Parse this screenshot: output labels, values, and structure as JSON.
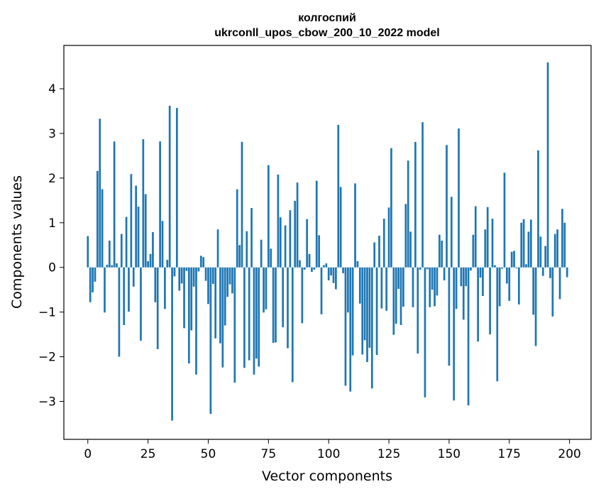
{
  "chart_data": {
    "type": "bar",
    "title": [
      "колгоспий",
      "ukrconll_upos_cbow_200_10_2022 model"
    ],
    "xlabel": "Vector components",
    "ylabel": "Components values",
    "xlim": [
      -9.95,
      208.95
    ],
    "ylim": [
      -3.85,
      4.97
    ],
    "xticks": [
      0,
      25,
      50,
      75,
      100,
      125,
      150,
      175,
      200
    ],
    "yticks": [
      -3,
      -2,
      -1,
      0,
      1,
      2,
      3,
      4
    ],
    "ytick_labels": [
      "−3",
      "−2",
      "−1",
      "0",
      "1",
      "2",
      "3",
      "4"
    ],
    "grid": false,
    "bar_color": "#1f77b4",
    "x": [
      0,
      1,
      2,
      3,
      4,
      5,
      6,
      7,
      8,
      9,
      10,
      11,
      12,
      13,
      14,
      15,
      16,
      17,
      18,
      19,
      20,
      21,
      22,
      23,
      24,
      25,
      26,
      27,
      28,
      29,
      30,
      31,
      32,
      33,
      34,
      35,
      36,
      37,
      38,
      39,
      40,
      41,
      42,
      43,
      44,
      45,
      46,
      47,
      48,
      49,
      50,
      51,
      52,
      53,
      54,
      55,
      56,
      57,
      58,
      59,
      60,
      61,
      62,
      63,
      64,
      65,
      66,
      67,
      68,
      69,
      70,
      71,
      72,
      73,
      74,
      75,
      76,
      77,
      78,
      79,
      80,
      81,
      82,
      83,
      84,
      85,
      86,
      87,
      88,
      89,
      90,
      91,
      92,
      93,
      94,
      95,
      96,
      97,
      98,
      99,
      100,
      101,
      102,
      103,
      104,
      105,
      106,
      107,
      108,
      109,
      110,
      111,
      112,
      113,
      114,
      115,
      116,
      117,
      118,
      119,
      120,
      121,
      122,
      123,
      124,
      125,
      126,
      127,
      128,
      129,
      130,
      131,
      132,
      133,
      134,
      135,
      136,
      137,
      138,
      139,
      140,
      141,
      142,
      143,
      144,
      145,
      146,
      147,
      148,
      149,
      150,
      151,
      152,
      153,
      154,
      155,
      156,
      157,
      158,
      159,
      160,
      161,
      162,
      163,
      164,
      165,
      166,
      167,
      168,
      169,
      170,
      171,
      172,
      173,
      174,
      175,
      176,
      177,
      178,
      179,
      180,
      181,
      182,
      183,
      184,
      185,
      186,
      187,
      188,
      189,
      190,
      191,
      192,
      193,
      194,
      195,
      196,
      197,
      198,
      199
    ],
    "values": [
      0.7,
      -0.78,
      -0.56,
      -0.32,
      2.16,
      3.33,
      1.75,
      -1.01,
      0.06,
      0.6,
      0.05,
      2.82,
      0.09,
      -2.0,
      0.75,
      -1.29,
      1.13,
      -0.99,
      2.09,
      -0.43,
      1.83,
      1.36,
      -1.64,
      2.87,
      1.64,
      0.14,
      0.3,
      0.79,
      -0.78,
      -1.83,
      2.82,
      1.04,
      -0.93,
      0.17,
      3.62,
      -3.43,
      -0.2,
      3.57,
      -0.52,
      -0.36,
      -1.36,
      -0.08,
      -2.15,
      -1.41,
      -0.43,
      -2.4,
      -0.09,
      0.26,
      0.23,
      -0.3,
      -0.82,
      -3.28,
      -0.37,
      -1.59,
      0.85,
      -1.7,
      -2.24,
      -1.3,
      -0.66,
      -0.38,
      -0.58,
      -2.58,
      1.75,
      0.5,
      2.81,
      -2.25,
      0.81,
      -2.08,
      1.33,
      -2.4,
      -2.04,
      -2.22,
      0.62,
      -1.01,
      -0.94,
      2.29,
      0.42,
      -1.69,
      -1.68,
      2.08,
      1.12,
      -1.34,
      0.94,
      -1.81,
      1.28,
      -2.57,
      1.49,
      1.9,
      0.16,
      -1.25,
      -0.05,
      1.08,
      0.3,
      -0.1,
      -0.05,
      1.94,
      0.72,
      -1.05,
      0.05,
      0.09,
      -0.29,
      -0.18,
      -0.35,
      -0.49,
      3.19,
      1.8,
      -0.13,
      -2.65,
      -1.01,
      -2.78,
      -1.97,
      1.88,
      0.14,
      -0.81,
      -1.95,
      -1.63,
      -2.12,
      -1.8,
      -2.71,
      0.56,
      -1.96,
      0.71,
      -0.92,
      1.09,
      -0.97,
      1.34,
      2.67,
      -1.51,
      -1.26,
      -0.48,
      -1.29,
      -0.88,
      1.42,
      2.39,
      0.8,
      -0.89,
      2.81,
      -1.93,
      -0.05,
      3.25,
      -2.91,
      -0.04,
      -0.89,
      -0.5,
      -0.87,
      -0.63,
      0.73,
      0.6,
      -0.29,
      2.74,
      -2.2,
      1.58,
      -2.98,
      -0.93,
      3.11,
      -0.42,
      -1.17,
      -0.42,
      -3.09,
      -0.07,
      0.73,
      1.37,
      -1.66,
      -0.23,
      -0.64,
      0.85,
      1.35,
      -1.5,
      1.09,
      0.05,
      -2.55,
      -0.87,
      -0.03,
      2.12,
      -0.36,
      -0.75,
      0.35,
      0.37,
      -0.02,
      -0.83,
      1.0,
      1.08,
      0.07,
      0.8,
      1.07,
      -1.06,
      -1.76,
      2.62,
      0.69,
      -0.19,
      0.48,
      4.59,
      -0.24,
      -1.1,
      0.75,
      0.85,
      -0.71,
      1.31,
      1.0,
      -0.22
    ]
  }
}
